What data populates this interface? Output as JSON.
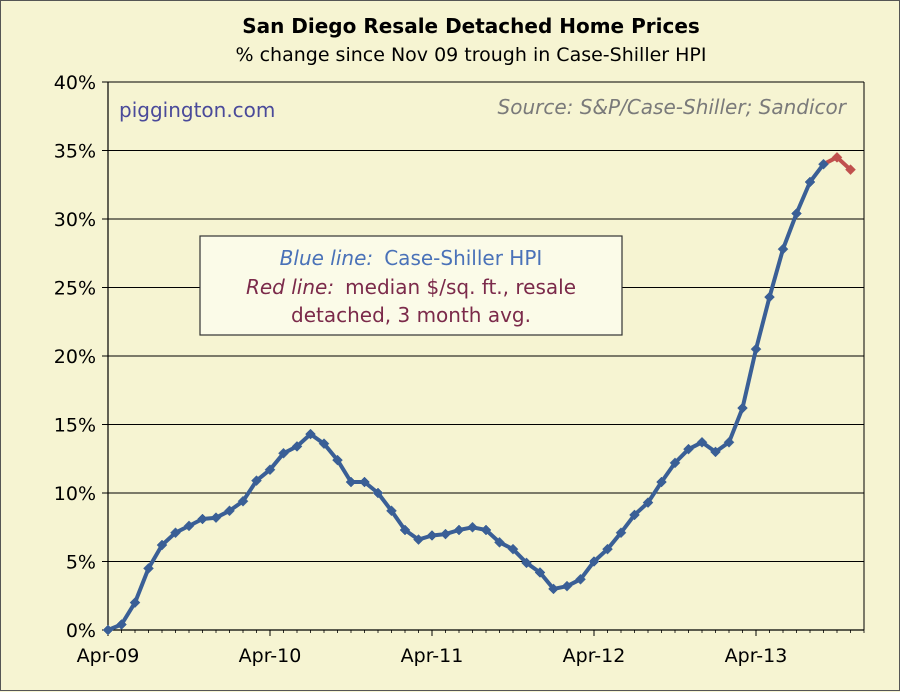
{
  "chart_data": {
    "type": "line",
    "title": "San Diego Resale Detached Home Prices",
    "subtitle": "% change since Nov 09 trough in Case-Shiller HPI",
    "xlabel": "",
    "ylabel": "",
    "x_tick_labels": [
      "Apr-09",
      "Apr-10",
      "Apr-11",
      "Apr-12",
      "Apr-13"
    ],
    "y_tick_labels": [
      "0%",
      "5%",
      "10%",
      "15%",
      "20%",
      "25%",
      "30%",
      "35%",
      "40%"
    ],
    "ylim": [
      0,
      40
    ],
    "grid": true,
    "series": [
      {
        "color": "#3a5f96",
        "x": [
          "2009-04",
          "2009-05",
          "2009-06",
          "2009-07",
          "2009-08",
          "2009-09",
          "2009-10",
          "2009-11",
          "2009-12",
          "2010-01",
          "2010-02",
          "2010-03",
          "2010-04",
          "2010-05",
          "2010-06",
          "2010-07",
          "2010-08",
          "2010-09",
          "2010-10",
          "2010-11",
          "2010-12",
          "2011-01",
          "2011-02",
          "2011-03",
          "2011-04",
          "2011-05",
          "2011-06",
          "2011-07",
          "2011-08",
          "2011-09",
          "2011-10",
          "2011-11",
          "2011-12",
          "2012-01",
          "2012-02",
          "2012-03",
          "2012-04",
          "2012-05",
          "2012-06",
          "2012-07",
          "2012-08",
          "2012-09",
          "2012-10",
          "2012-11",
          "2012-12",
          "2013-01",
          "2013-02",
          "2013-03",
          "2013-04",
          "2013-05",
          "2013-06",
          "2013-07",
          "2013-08",
          "2013-09"
        ],
        "values": [
          0.0,
          0.4,
          2.0,
          4.5,
          6.2,
          7.1,
          7.6,
          8.1,
          8.2,
          8.7,
          9.4,
          10.9,
          11.7,
          12.9,
          13.4,
          14.3,
          13.6,
          12.4,
          10.8,
          10.8,
          10.0,
          8.7,
          7.3,
          6.6,
          6.9,
          7.0,
          7.3,
          7.5,
          7.3,
          6.4,
          5.9,
          4.9,
          4.2,
          3.0,
          3.2,
          3.7,
          5.0,
          5.9,
          7.1,
          8.4,
          9.3,
          10.8,
          12.2,
          13.2,
          13.7,
          13.0,
          13.7,
          16.2,
          20.5,
          24.3,
          27.8,
          30.4,
          32.7,
          34.0
        ]
      },
      {
        "color": "#c0504d",
        "x": [
          "2013-09",
          "2013-10",
          "2013-11"
        ],
        "values": [
          34.0,
          34.5,
          33.6
        ]
      }
    ],
    "annotations": {
      "site": "piggington.com",
      "source": "Source: S&P/Case-Shiller; Sandicor",
      "legend_blue_label": "Blue line:",
      "legend_blue_text": "Case-Shiller HPI",
      "legend_red_label": "Red line:",
      "legend_red_text": "median $/sq. ft., resale",
      "legend_red_text2": "detached, 3 month avg."
    }
  }
}
